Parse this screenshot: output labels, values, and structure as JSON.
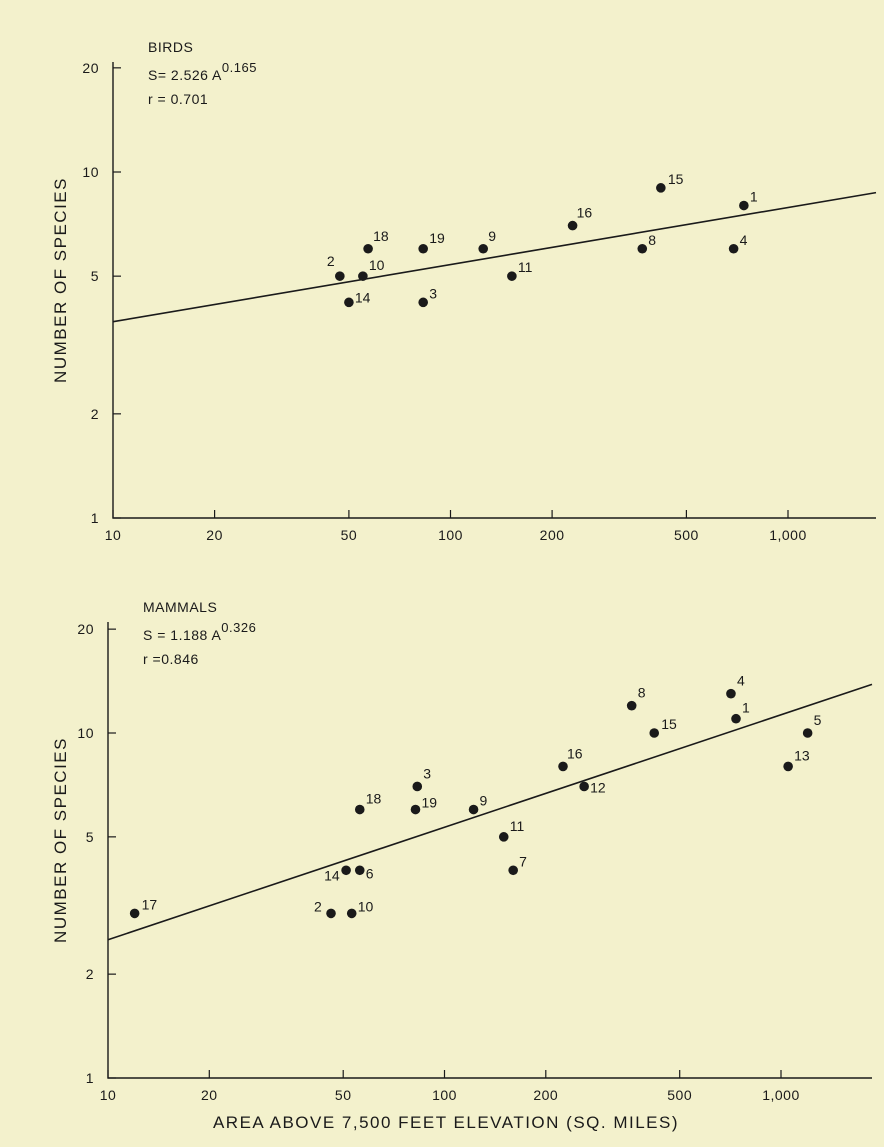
{
  "chart_data": [
    {
      "type": "scatter",
      "title": "BIRDS",
      "equation": "S= 2.526 A",
      "exponent": "0.165",
      "r_text": "r = 0.701",
      "ylabel": "NUMBER OF SPECIES",
      "xlabel": "",
      "x_scale": "log",
      "y_scale": "log",
      "xlim": [
        10,
        2000
      ],
      "ylim": [
        1,
        20
      ],
      "xticks": [
        10,
        20,
        50,
        100,
        200,
        500,
        1000
      ],
      "xtick_labels": [
        "10",
        "20",
        "50",
        "100",
        "200",
        "500",
        "1,000"
      ],
      "yticks": [
        1,
        2,
        5,
        10,
        20
      ],
      "ytick_labels": [
        "1",
        "2",
        "5",
        "10",
        "20"
      ],
      "fit": {
        "a": 2.526,
        "b": 0.165
      },
      "points": [
        {
          "label": "1",
          "x": 740,
          "y": 8
        },
        {
          "label": "15",
          "x": 420,
          "y": 9
        },
        {
          "label": "16",
          "x": 230,
          "y": 7
        },
        {
          "label": "8",
          "x": 370,
          "y": 6
        },
        {
          "label": "4",
          "x": 690,
          "y": 6
        },
        {
          "label": "9",
          "x": 125,
          "y": 6
        },
        {
          "label": "19",
          "x": 83,
          "y": 6
        },
        {
          "label": "18",
          "x": 57,
          "y": 6
        },
        {
          "label": "11",
          "x": 152,
          "y": 5
        },
        {
          "label": "2",
          "x": 47,
          "y": 5
        },
        {
          "label": "10",
          "x": 55,
          "y": 5
        },
        {
          "label": "14",
          "x": 50,
          "y": 4.2
        },
        {
          "label": "3",
          "x": 83,
          "y": 4.2
        }
      ]
    },
    {
      "type": "scatter",
      "title": "MAMMALS",
      "equation": "S = 1.188 A",
      "exponent": "0.326",
      "r_text": "r =0.846",
      "ylabel": "NUMBER OF SPECIES",
      "xlabel": "AREA ABOVE 7,500 FEET ELEVATION (SQ. MILES)",
      "x_scale": "log",
      "y_scale": "log",
      "xlim": [
        10,
        2000
      ],
      "ylim": [
        1,
        20
      ],
      "xticks": [
        10,
        20,
        50,
        100,
        200,
        500,
        1000
      ],
      "xtick_labels": [
        "10",
        "20",
        "50",
        "100",
        "200",
        "500",
        "1,000"
      ],
      "yticks": [
        1,
        2,
        5,
        10,
        20
      ],
      "ytick_labels": [
        "1",
        "2",
        "5",
        "10",
        "20"
      ],
      "fit": {
        "a": 1.188,
        "b": 0.326
      },
      "points": [
        {
          "label": "4",
          "x": 710,
          "y": 13
        },
        {
          "label": "8",
          "x": 360,
          "y": 12
        },
        {
          "label": "1",
          "x": 735,
          "y": 11
        },
        {
          "label": "5",
          "x": 1200,
          "y": 10
        },
        {
          "label": "15",
          "x": 420,
          "y": 10
        },
        {
          "label": "13",
          "x": 1050,
          "y": 8
        },
        {
          "label": "16",
          "x": 225,
          "y": 8
        },
        {
          "label": "12",
          "x": 260,
          "y": 7
        },
        {
          "label": "3",
          "x": 83,
          "y": 7
        },
        {
          "label": "9",
          "x": 122,
          "y": 6
        },
        {
          "label": "19",
          "x": 82,
          "y": 6
        },
        {
          "label": "18",
          "x": 56,
          "y": 6
        },
        {
          "label": "11",
          "x": 150,
          "y": 5
        },
        {
          "label": "7",
          "x": 160,
          "y": 4
        },
        {
          "label": "14",
          "x": 51,
          "y": 4
        },
        {
          "label": "6",
          "x": 56,
          "y": 4
        },
        {
          "label": "17",
          "x": 12,
          "y": 3
        },
        {
          "label": "2",
          "x": 46,
          "y": 3
        },
        {
          "label": "10",
          "x": 53,
          "y": 3
        }
      ]
    }
  ]
}
